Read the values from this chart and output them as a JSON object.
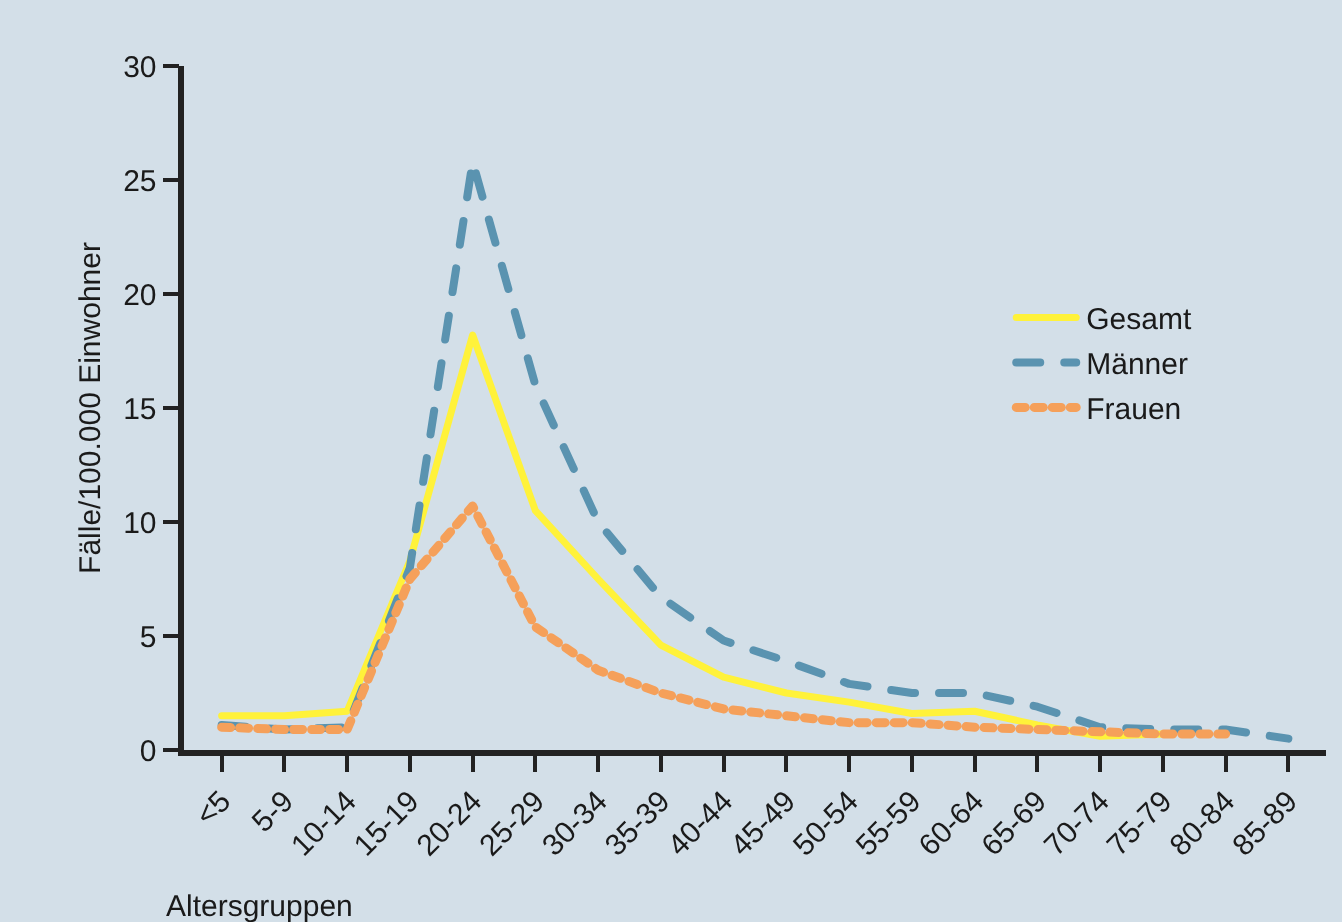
{
  "chart_data": {
    "type": "line",
    "xlabel": "Altersgruppen",
    "ylabel": "Fälle/100.000 Einwohner",
    "categories": [
      "<5",
      "5-9",
      "10-14",
      "15-19",
      "20-24",
      "25-29",
      "30-34",
      "35-39",
      "40-44",
      "45-49",
      "50-54",
      "55-59",
      "60-64",
      "65-69",
      "70-74",
      "75-79",
      "80-84",
      "85-89"
    ],
    "series": [
      {
        "name": "Gesamt",
        "color": "#fff23a",
        "line_style": "solid",
        "values": [
          1.5,
          1.5,
          1.7,
          8.3,
          18.2,
          10.5,
          7.5,
          4.6,
          3.2,
          2.5,
          2.1,
          1.6,
          1.7,
          1.1,
          0.6,
          0.7,
          null,
          null
        ]
      },
      {
        "name": "Männer",
        "color": "#5a93b0",
        "line_style": "dashed",
        "values": [
          1.1,
          0.9,
          1.0,
          8.0,
          25.8,
          16.0,
          10.0,
          6.7,
          4.8,
          3.9,
          2.9,
          2.5,
          2.5,
          1.9,
          1.0,
          0.9,
          0.9,
          0.5
        ]
      },
      {
        "name": "Frauen",
        "color": "#f5a05a",
        "line_style": "dotted",
        "values": [
          1.0,
          0.9,
          0.9,
          7.5,
          10.7,
          5.4,
          3.5,
          2.5,
          1.8,
          1.5,
          1.2,
          1.2,
          1.0,
          0.9,
          0.8,
          0.7,
          0.7,
          null
        ]
      }
    ],
    "ylim": [
      0,
      30
    ],
    "yticks": [
      0,
      5,
      10,
      15,
      20,
      25,
      30
    ],
    "grid": false,
    "legend": "right",
    "marker": "none"
  }
}
